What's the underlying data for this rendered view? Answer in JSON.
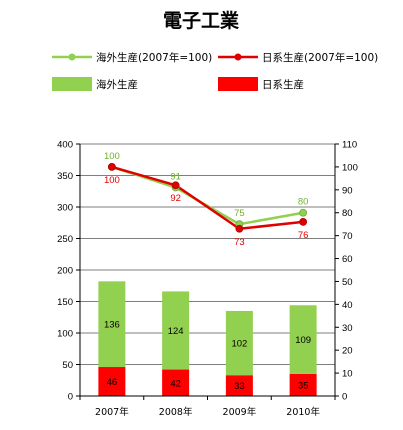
{
  "chart_data": {
    "type": "bar",
    "title": "電子工業",
    "categories": [
      "2007年",
      "2008年",
      "2009年",
      "2010年"
    ],
    "bar_series": [
      {
        "name": "日系生産",
        "values": [
          46,
          42,
          33,
          35
        ],
        "color": "#ff0000"
      },
      {
        "name": "海外生産",
        "values": [
          136,
          124,
          102,
          109
        ],
        "color": "#92d050"
      }
    ],
    "line_series": [
      {
        "name": "海外生産(2007年=100)",
        "values": [
          100,
          91,
          75,
          80
        ],
        "color": "#92d050",
        "label_color": "#70b030",
        "label_position": "above"
      },
      {
        "name": "日系生産(2007年=100)",
        "values": [
          100,
          92,
          73,
          76
        ],
        "color": "#e00000",
        "label_color": "#e00000",
        "label_position": "below"
      }
    ],
    "y_left": {
      "min": 0,
      "max": 400,
      "step": 50,
      "ticks": [
        "0",
        "50",
        "100",
        "150",
        "200",
        "250",
        "300",
        "350",
        "400"
      ]
    },
    "y_right": {
      "min": 0,
      "max": 110,
      "step": 10,
      "ticks": [
        "0",
        "10",
        "20",
        "30",
        "40",
        "50",
        "60",
        "70",
        "80",
        "90",
        "100",
        "110"
      ]
    },
    "grid": true,
    "legend": [
      {
        "label": "海外生産(2007年=100)",
        "kind": "line",
        "color": "#92d050"
      },
      {
        "label": "日系生産(2007年=100)",
        "kind": "line",
        "color": "#e00000"
      },
      {
        "label": "海外生産",
        "kind": "bar",
        "color": "#92d050"
      },
      {
        "label": "日系生産",
        "kind": "bar",
        "color": "#ff0000"
      }
    ],
    "legend_position": "top"
  }
}
